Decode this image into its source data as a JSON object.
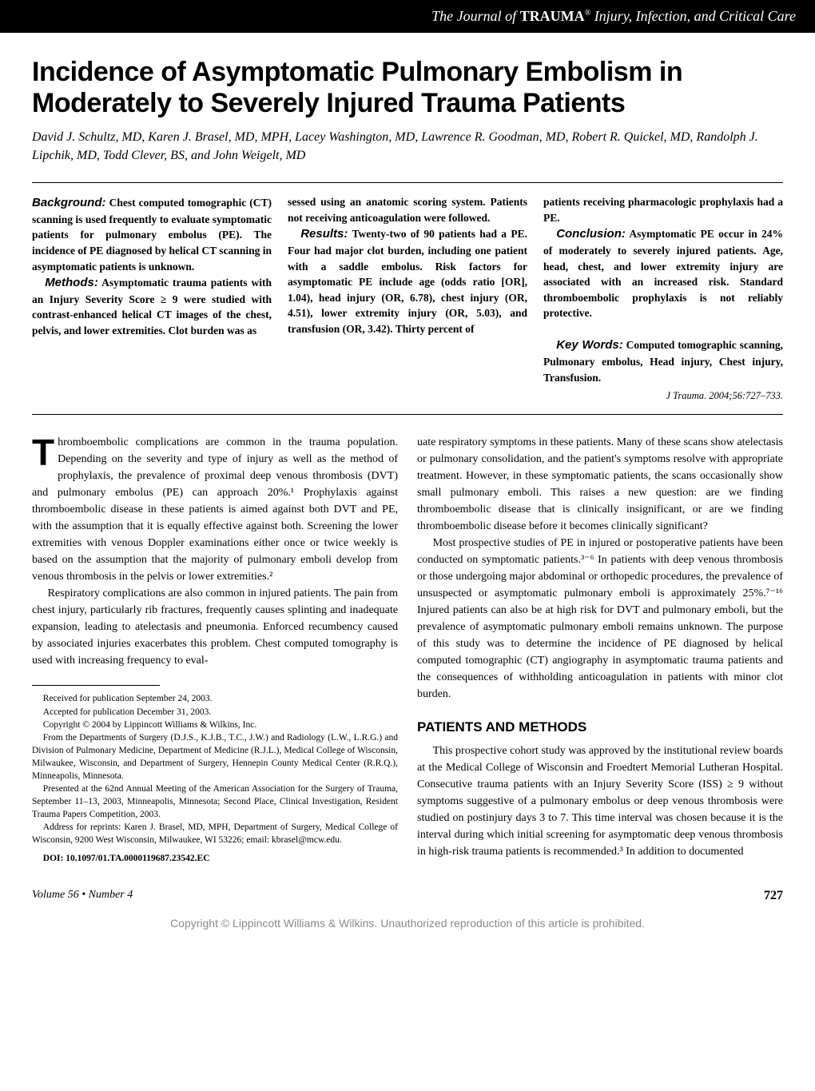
{
  "header": {
    "journal_title_prefix": "The Journal of ",
    "journal_title_bold": "TRAUMA",
    "journal_registered": "®",
    "journal_subtitle": " Injury, Infection, and Critical Care"
  },
  "article": {
    "title": "Incidence of Asymptomatic Pulmonary Embolism in Moderately to Severely Injured Trauma Patients",
    "authors": "David J. Schultz, MD, Karen J. Brasel, MD, MPH, Lacey Washington, MD, Lawrence R. Goodman, MD, Robert R. Quickel, MD, Randolph J. Lipchik, MD, Todd Clever, BS, and John Weigelt, MD"
  },
  "abstract": {
    "background_label": "Background:",
    "background_text": " Chest computed tomographic (CT) scanning is used frequently to evaluate symptomatic patients for pulmonary embolus (PE). The incidence of PE diagnosed by helical CT scanning in asymptomatic patients is unknown.",
    "methods_label": "Methods:",
    "methods_text": " Asymptomatic trauma patients with an Injury Severity Score ≥ 9 were studied with contrast-enhanced helical CT images of the chest, pelvis, and lower extremities. Clot burden was as",
    "col2_continuation": "sessed using an anatomic scoring system. Patients not receiving anticoagulation were followed.",
    "results_label": "Results:",
    "results_text": " Twenty-two of 90 patients had a PE. Four had major clot burden, including one patient with a saddle embolus. Risk factors for asymptomatic PE include age (odds ratio [OR], 1.04), head injury (OR, 6.78), chest injury (OR, 4.51), lower extremity injury (OR, 5.03), and transfusion (OR, 3.42). Thirty percent of",
    "col3_continuation": "patients receiving pharmacologic prophylaxis had a PE.",
    "conclusion_label": "Conclusion:",
    "conclusion_text": " Asymptomatic PE occur in 24% of moderately to severely injured patients. Age, head, chest, and lower extremity injury are associated with an increased risk. Standard thromboembolic prophylaxis is not reliably protective.",
    "keywords_label": "Key Words:",
    "keywords_text": " Computed tomographic scanning, Pulmonary embolus, Head injury, Chest injury, Transfusion.",
    "citation": "J Trauma. 2004;56:727–733."
  },
  "body": {
    "left": {
      "dropcap": "T",
      "p1": "hromboembolic complications are common in the trauma population. Depending on the severity and type of injury as well as the method of prophylaxis, the prevalence of proximal deep venous thrombosis (DVT) and pulmonary embolus (PE) can approach 20%.¹ Prophylaxis against thromboembolic disease in these patients is aimed against both DVT and PE, with the assumption that it is equally effective against both. Screening the lower extremities with venous Doppler examinations either once or twice weekly is based on the assumption that the majority of pulmonary emboli develop from venous thrombosis in the pelvis or lower extremities.²",
      "p2": "Respiratory complications are also common in injured patients. The pain from chest injury, particularly rib fractures, frequently causes splinting and inadequate expansion, leading to atelectasis and pneumonia. Enforced recumbency caused by associated injuries exacerbates this problem. Chest computed tomography is used with increasing frequency to eval-"
    },
    "right": {
      "p1": "uate respiratory symptoms in these patients. Many of these scans show atelectasis or pulmonary consolidation, and the patient's symptoms resolve with appropriate treatment. However, in these symptomatic patients, the scans occasionally show small pulmonary emboli. This raises a new question: are we finding thromboembolic disease that is clinically insignificant, or are we finding thromboembolic disease before it becomes clinically significant?",
      "p2": "Most prospective studies of PE in injured or postoperative patients have been conducted on symptomatic patients.³⁻⁶ In patients with deep venous thrombosis or those undergoing major abdominal or orthopedic procedures, the prevalence of unsuspected or asymptomatic pulmonary emboli is approximately 25%.⁷⁻¹⁶ Injured patients can also be at high risk for DVT and pulmonary emboli, but the prevalence of asymptomatic pulmonary emboli remains unknown. The purpose of this study was to determine the incidence of PE diagnosed by helical computed tomographic (CT) angiography in asymptomatic trauma patients and the consequences of withholding anticoagulation in patients with minor clot burden.",
      "methods_heading": "PATIENTS AND METHODS",
      "p3": "This prospective cohort study was approved by the institutional review boards at the Medical College of Wisconsin and Froedtert Memorial Lutheran Hospital. Consecutive trauma patients with an Injury Severity Score (ISS) ≥ 9 without symptoms suggestive of a pulmonary embolus or deep venous thrombosis were studied on postinjury days 3 to 7. This time interval was chosen because it is the interval during which initial screening for asymptomatic deep venous thrombosis in high-risk trauma patients is recommended.³ In addition to documented"
    }
  },
  "footnotes": {
    "f1": "Received for publication September 24, 2003.",
    "f2": "Accepted for publication December 31, 2003.",
    "f3": "Copyright © 2004 by Lippincott Williams & Wilkins, Inc.",
    "f4": "From the Departments of Surgery (D.J.S., K.J.B., T.C., J.W.) and Radiology (L.W., L.R.G.) and Division of Pulmonary Medicine, Department of Medicine (R.J.L.), Medical College of Wisconsin, Milwaukee, Wisconsin, and Department of Surgery, Hennepin County Medical Center (R.R.Q.), Minneapolis, Minnesota.",
    "f5": "Presented at the 62nd Annual Meeting of the American Association for the Surgery of Trauma, September 11–13, 2003, Minneapolis, Minnesota; Second Place, Clinical Investigation, Resident Trauma Papers Competition, 2003.",
    "f6": "Address for reprints: Karen J. Brasel, MD, MPH, Department of Surgery, Medical College of Wisconsin, 9200 West Wisconsin, Milwaukee, WI 53226; email: kbrasel@mcw.edu.",
    "doi": "DOI: 10.1097/01.TA.0000119687.23542.EC"
  },
  "footer": {
    "volume_issue": "Volume 56 • Number 4",
    "page_number": "727"
  },
  "copyright": "Copyright © Lippincott Williams & Wilkins. Unauthorized reproduction of this article is prohibited."
}
